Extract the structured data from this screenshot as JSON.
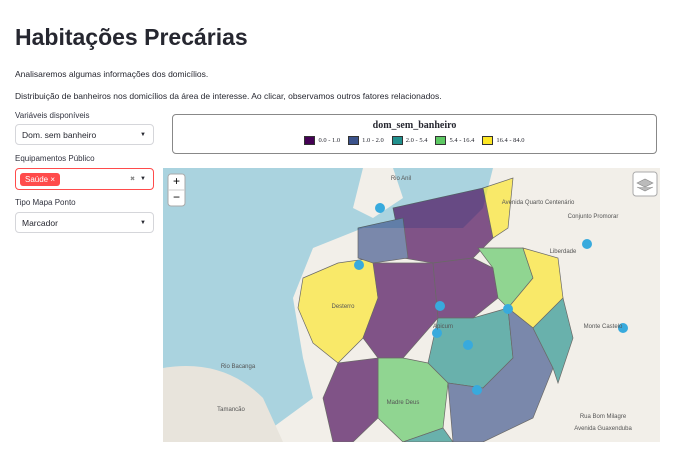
{
  "header": {
    "title": "Habitações Precárias",
    "paragraphs": [
      "Analisaremos algumas informações dos domicílios.",
      "Distribuição de banheiros nos domicílios da área de interesse. Ao clicar, observamos outros fatores relacionados."
    ]
  },
  "sidebar": {
    "variable": {
      "label": "Variáveis disponíveis",
      "value": "Dom. sem banheiro"
    },
    "equipment": {
      "label": "Equipamentos Público",
      "tags": [
        "Saúde"
      ]
    },
    "point_type": {
      "label": "Tipo Mapa Ponto",
      "value": "Marcador"
    }
  },
  "legend": {
    "title": "dom_sem_banheiro",
    "items": [
      {
        "label": "0.0 - 1.0",
        "color": "#440154"
      },
      {
        "label": "1.0 - 2.0",
        "color": "#3b528b"
      },
      {
        "label": "2.0 - 5.4",
        "color": "#21908d"
      },
      {
        "label": "5.4 - 16.4",
        "color": "#5dc863"
      },
      {
        "label": "16.4 - 84.0",
        "color": "#fde725"
      }
    ]
  },
  "map": {
    "zoom_in": "+",
    "zoom_out": "−",
    "labels": [
      "Rio Anil",
      "Rio Bacanga",
      "Avenida Quarto Centenário",
      "Conjunto Promorar",
      "Desterro",
      "Apicum",
      "Madre Deus",
      "Liberdade",
      "Monte Castelo",
      "Tamancão",
      "Rua Bom Milagre",
      "Avenida Guaxenduba"
    ]
  }
}
